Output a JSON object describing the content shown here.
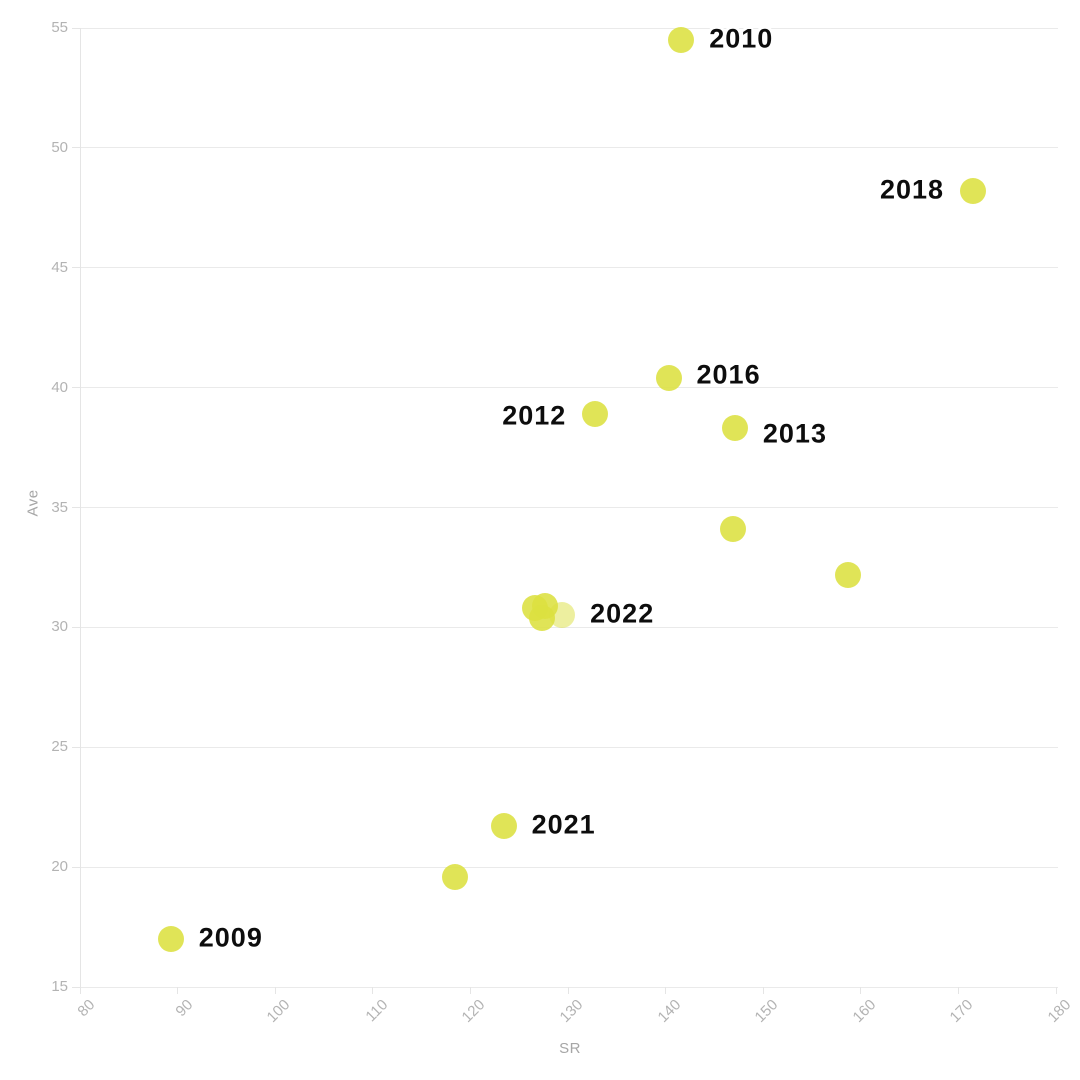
{
  "chart_data": {
    "type": "scatter",
    "title": "",
    "xlabel": "SR",
    "ylabel": "Ave",
    "xlim": [
      80,
      180
    ],
    "ylim": [
      15,
      55
    ],
    "x_ticks": [
      80,
      90,
      100,
      110,
      120,
      130,
      140,
      150,
      160,
      170,
      180
    ],
    "y_ticks": [
      15,
      20,
      25,
      30,
      35,
      40,
      45,
      50,
      55
    ],
    "grid": "horizontal-only",
    "legend": "none",
    "x_tick_rotation": -45,
    "points": [
      {
        "x": 89.3,
        "y": 17.0,
        "label": "2009",
        "side": "right"
      },
      {
        "x": 141.6,
        "y": 54.5,
        "label": "2010",
        "side": "right"
      },
      {
        "x": 132.8,
        "y": 38.9,
        "label": "2012",
        "side": "left",
        "label_dy": 3
      },
      {
        "x": 147.1,
        "y": 38.3,
        "label": "2013",
        "side": "right",
        "label_dy": 7
      },
      {
        "x": 140.3,
        "y": 40.4,
        "label": "2016",
        "side": "right",
        "label_dy": -2
      },
      {
        "x": 171.5,
        "y": 48.2,
        "label": "2018",
        "side": "left"
      },
      {
        "x": 123.4,
        "y": 21.7,
        "label": "2021",
        "side": "right"
      },
      {
        "x": 129.4,
        "y": 30.5,
        "label": "2022",
        "side": "right",
        "muted": true
      },
      {
        "x": 126.6,
        "y": 30.8
      },
      {
        "x": 127.6,
        "y": 30.9
      },
      {
        "x": 127.3,
        "y": 30.4
      },
      {
        "x": 146.9,
        "y": 34.1
      },
      {
        "x": 158.7,
        "y": 32.2
      },
      {
        "x": 118.4,
        "y": 19.6
      }
    ]
  },
  "colors": {
    "point_fill": "#dce040",
    "point_opacity": 0.88,
    "muted_point_opacity": 0.5,
    "gridline": "#eaeaea",
    "axis_line": "#e5e5e5",
    "tick_text": "#b3b3b3",
    "axis_title_text": "#a6a6a6",
    "year_label_text": "#0d0d0d",
    "background": "#ffffff"
  }
}
